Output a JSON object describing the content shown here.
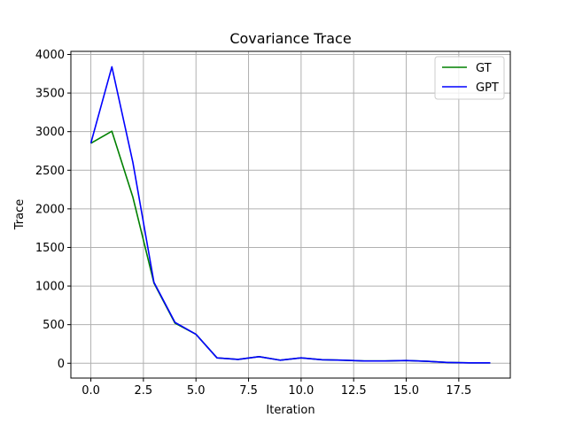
{
  "chart_data": {
    "type": "line",
    "title": "Covariance Trace",
    "xlabel": "Iteration",
    "ylabel": "Trace",
    "xlim": [
      -0.95,
      19.95
    ],
    "ylim": [
      -192,
      4040
    ],
    "xticks": [
      0.0,
      2.5,
      5.0,
      7.5,
      10.0,
      12.5,
      15.0,
      17.5
    ],
    "xtick_labels": [
      "0.0",
      "2.5",
      "5.0",
      "7.5",
      "10.0",
      "12.5",
      "15.0",
      "17.5"
    ],
    "yticks": [
      0,
      500,
      1000,
      1500,
      2000,
      2500,
      3000,
      3500,
      4000
    ],
    "ytick_labels": [
      "0",
      "500",
      "1000",
      "1500",
      "2000",
      "2500",
      "3000",
      "3500",
      "4000"
    ],
    "grid": true,
    "legend_position": "top-right",
    "x": [
      0,
      1,
      2,
      3,
      4,
      5,
      6,
      7,
      8,
      9,
      10,
      11,
      12,
      13,
      14,
      15,
      16,
      17,
      18,
      19
    ],
    "series": [
      {
        "name": "GT",
        "color": "#008000",
        "values": [
          2850,
          3005,
          2150,
          1040,
          520,
          375,
          70,
          50,
          85,
          40,
          70,
          45,
          40,
          30,
          30,
          35,
          25,
          10,
          5,
          5
        ]
      },
      {
        "name": "GPT",
        "color": "#0000ff",
        "values": [
          2850,
          3840,
          2600,
          1050,
          530,
          375,
          70,
          50,
          85,
          40,
          70,
          45,
          40,
          30,
          30,
          35,
          25,
          10,
          5,
          5
        ]
      }
    ]
  }
}
